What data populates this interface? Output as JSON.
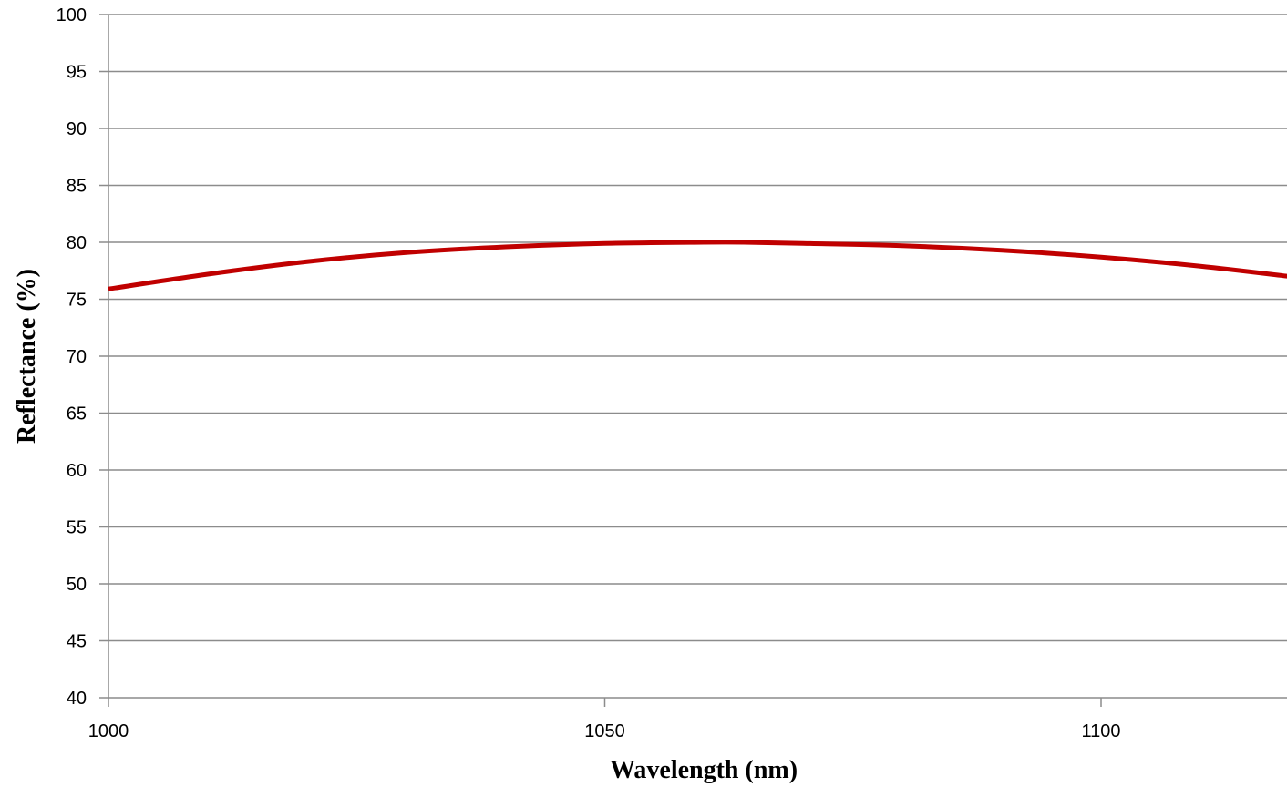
{
  "chart_data": {
    "type": "line",
    "title": "",
    "xlabel": "Wavelength (nm)",
    "ylabel": "Reflectance (%)",
    "xlim": [
      1000,
      1119
    ],
    "ylim": [
      40,
      100
    ],
    "x_ticks": [
      "1000",
      "1050",
      "1100"
    ],
    "y_ticks": [
      "40",
      "45",
      "50",
      "55",
      "60",
      "65",
      "70",
      "75",
      "80",
      "85",
      "90",
      "95",
      "100"
    ],
    "grid": true,
    "legend": "none",
    "series": [
      {
        "color": "#C00000",
        "x": [
          1000,
          1010,
          1020,
          1030,
          1040,
          1050,
          1060,
          1064,
          1070,
          1080,
          1090,
          1100,
          1110,
          1119
        ],
        "y": [
          75.9,
          77.2,
          78.3,
          79.1,
          79.6,
          79.9,
          80.0,
          80.0,
          79.9,
          79.7,
          79.3,
          78.7,
          77.9,
          77.0
        ]
      }
    ]
  }
}
